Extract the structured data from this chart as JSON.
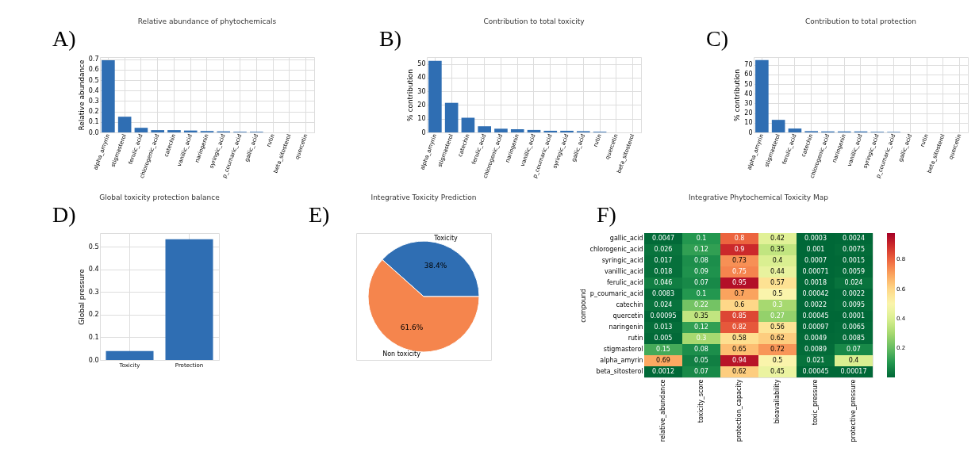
{
  "chart_data": [
    {
      "type": "bar",
      "title": "Relative abundance of phytochemicals",
      "ylabel": "Relative abundance",
      "annotations": [
        "A)"
      ],
      "color": "#2f6eb3",
      "grid": true,
      "categories": [
        "alpha_amyrin",
        "stigmasterol",
        "ferulic_acid",
        "chlorogenic_acid",
        "catechin",
        "vanillic_acid",
        "naringenin",
        "syringic_acid",
        "p_coumaric_acid",
        "gallic_acid",
        "rutin",
        "beta_sitosterol",
        "quercetin"
      ],
      "values": [
        0.69,
        0.15,
        0.044,
        0.022,
        0.022,
        0.018,
        0.013,
        0.01,
        0.006,
        0.006,
        0,
        0,
        0
      ],
      "ylim": [
        0,
        0.72
      ],
      "yticks": [
        {
          "value": 0,
          "label": "0.0"
        },
        0.1,
        0.2,
        0.3,
        0.4,
        0.5,
        0.6,
        0.7
      ]
    },
    {
      "type": "bar",
      "title": "Contribution to total toxicity",
      "ylabel": "% contribution",
      "annotations": [
        "B)"
      ],
      "color": "#2f6eb3",
      "grid": true,
      "categories": [
        "alpha_amyrin",
        "stigmasterol",
        "catechin",
        "ferulic_acid",
        "chlorogenic_acid",
        "naringenin",
        "vanillic_acid",
        "p_coumaric_acid",
        "syringic_acid",
        "gallic_acid",
        "rutin",
        "quercetin",
        "beta_sitosterol"
      ],
      "values": [
        52.2,
        21.6,
        10.7,
        4.5,
        2.7,
        2.3,
        1.8,
        1.2,
        1.2,
        0.9,
        0.5,
        0,
        0
      ],
      "ylim": [
        0,
        55
      ],
      "yticks": [
        0,
        10,
        20,
        30,
        40,
        50
      ]
    },
    {
      "type": "bar",
      "title": "Contribution to total protection",
      "ylabel": "% contribution",
      "annotations": [
        "C)"
      ],
      "color": "#2f6eb3",
      "grid": true,
      "categories": [
        "alpha_amyrin",
        "stigmasterol",
        "ferulic_acid",
        "catechin",
        "chlorogenic_acid",
        "naringenin",
        "vanillic_acid",
        "syringic_acid",
        "p_coumaric_acid",
        "gallic_acid",
        "rutin",
        "beta_sitosterol",
        "quercetin"
      ],
      "values": [
        75,
        13,
        4,
        1.3,
        1,
        1,
        1,
        0.6,
        0.5,
        0,
        0,
        0,
        0
      ],
      "ylim": [
        0,
        78
      ],
      "yticks": [
        0,
        10,
        20,
        30,
        40,
        50,
        60,
        70
      ]
    },
    {
      "type": "bar",
      "title": "Global toxicity protection balance",
      "ylabel": "Global pressure",
      "annotations": [
        "D)"
      ],
      "color": "#2f6eb3",
      "grid": true,
      "categories": [
        "Toxicity",
        "Protection"
      ],
      "values": [
        0.039,
        0.533
      ],
      "ylim": [
        0,
        0.56
      ],
      "yticks": [
        {
          "value": 0,
          "label": "0.0"
        },
        0.1,
        0.2,
        0.3,
        0.4,
        0.5
      ]
    },
    {
      "type": "pie",
      "title": "Integrative Toxicity Prediction",
      "annotations": [
        "E)"
      ],
      "categories": [
        "Toxicity",
        "Non toxicity"
      ],
      "values": [
        38.4,
        61.6
      ],
      "colors": [
        "#2f6eb3",
        "#f5854d"
      ],
      "value_labels": [
        "38.4%",
        "61.6%"
      ]
    },
    {
      "type": "heatmap",
      "title": "Integrative Phytochemical Toxicity Map",
      "ylabel": "compound",
      "annotations": [
        "F)"
      ],
      "data_labels": true,
      "categories": [
        "relative_abundance",
        "toxicity_score",
        "protection_capacity",
        "bioavailability",
        "toxic_pressure",
        "protective_pressure"
      ],
      "y_categories": [
        "gallic_acid",
        "chlorogenic_acid",
        "syringic_acid",
        "vanillic_acid",
        "ferulic_acid",
        "p_coumaric_acid",
        "catechin",
        "quercetin",
        "naringenin",
        "rutin",
        "stigmasterol",
        "alpha_amyrin",
        "beta_sitosterol"
      ],
      "cells": [
        [
          0.0047,
          0.1,
          0.8,
          0.42,
          0.0003,
          0.0024
        ],
        [
          0.026,
          0.12,
          0.9,
          0.35,
          0.001,
          0.0075
        ],
        [
          0.017,
          0.08,
          0.73,
          0.4,
          0.0007,
          0.0015
        ],
        [
          0.018,
          0.09,
          0.75,
          0.44,
          0.00071,
          0.0059
        ],
        [
          0.046,
          0.07,
          0.95,
          0.57,
          0.0018,
          0.024
        ],
        [
          0.0083,
          0.1,
          0.7,
          0.5,
          0.00042,
          0.0022
        ],
        [
          0.024,
          0.22,
          0.6,
          0.3,
          0.0022,
          0.0095
        ],
        [
          0.00095,
          0.35,
          0.85,
          0.27,
          0.00045,
          0.0001
        ],
        [
          0.013,
          0.12,
          0.82,
          0.56,
          0.00097,
          0.0065
        ],
        [
          0.005,
          0.3,
          0.58,
          0.62,
          0.0049,
          0.0085
        ],
        [
          0.15,
          0.08,
          0.65,
          0.72,
          0.0089,
          0.07
        ],
        [
          0.69,
          0.05,
          0.94,
          0.5,
          0.021,
          0.4
        ],
        [
          0.0012,
          0.07,
          0.62,
          0.45,
          0.00045,
          0.00017
        ]
      ],
      "clim": [
        0,
        0.98
      ],
      "cticks": [
        0.2,
        0.4,
        0.6,
        0.8
      ]
    }
  ]
}
